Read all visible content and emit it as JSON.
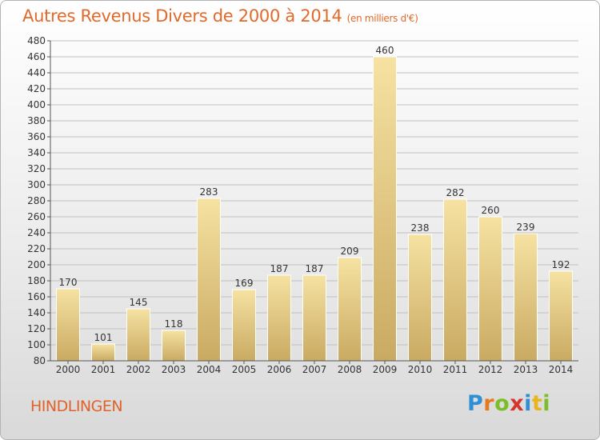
{
  "title": "Autres Revenus Divers de 2000 à 2014",
  "subtitle": "(en milliers d'€)",
  "town": "HINDLINGEN",
  "logo": {
    "letters": [
      "P",
      "r",
      "o",
      "x",
      "i",
      "t",
      "i"
    ],
    "colors": [
      "#2f8fd6",
      "#e8791e",
      "#7cbd2a",
      "#d6352b",
      "#2f8fd6",
      "#e8b51e",
      "#7cbd2a"
    ]
  },
  "colors": {
    "title": "#e06a2a",
    "bar_top": "#f6e2a2",
    "bar_bottom": "#c9aa62",
    "axis": "#555555",
    "grid": "#c0c0c0"
  },
  "chart_data": {
    "type": "bar",
    "categories": [
      "2000",
      "2001",
      "2002",
      "2003",
      "2004",
      "2005",
      "2006",
      "2007",
      "2008",
      "2009",
      "2010",
      "2011",
      "2012",
      "2013",
      "2014"
    ],
    "values": [
      170,
      101,
      145,
      118,
      283,
      169,
      187,
      187,
      209,
      460,
      238,
      282,
      260,
      239,
      192
    ],
    "ylim": [
      80,
      480
    ],
    "yticks": [
      80,
      100,
      120,
      140,
      160,
      180,
      200,
      220,
      240,
      260,
      280,
      300,
      320,
      340,
      360,
      380,
      400,
      420,
      440,
      460,
      480
    ],
    "grid": true
  }
}
